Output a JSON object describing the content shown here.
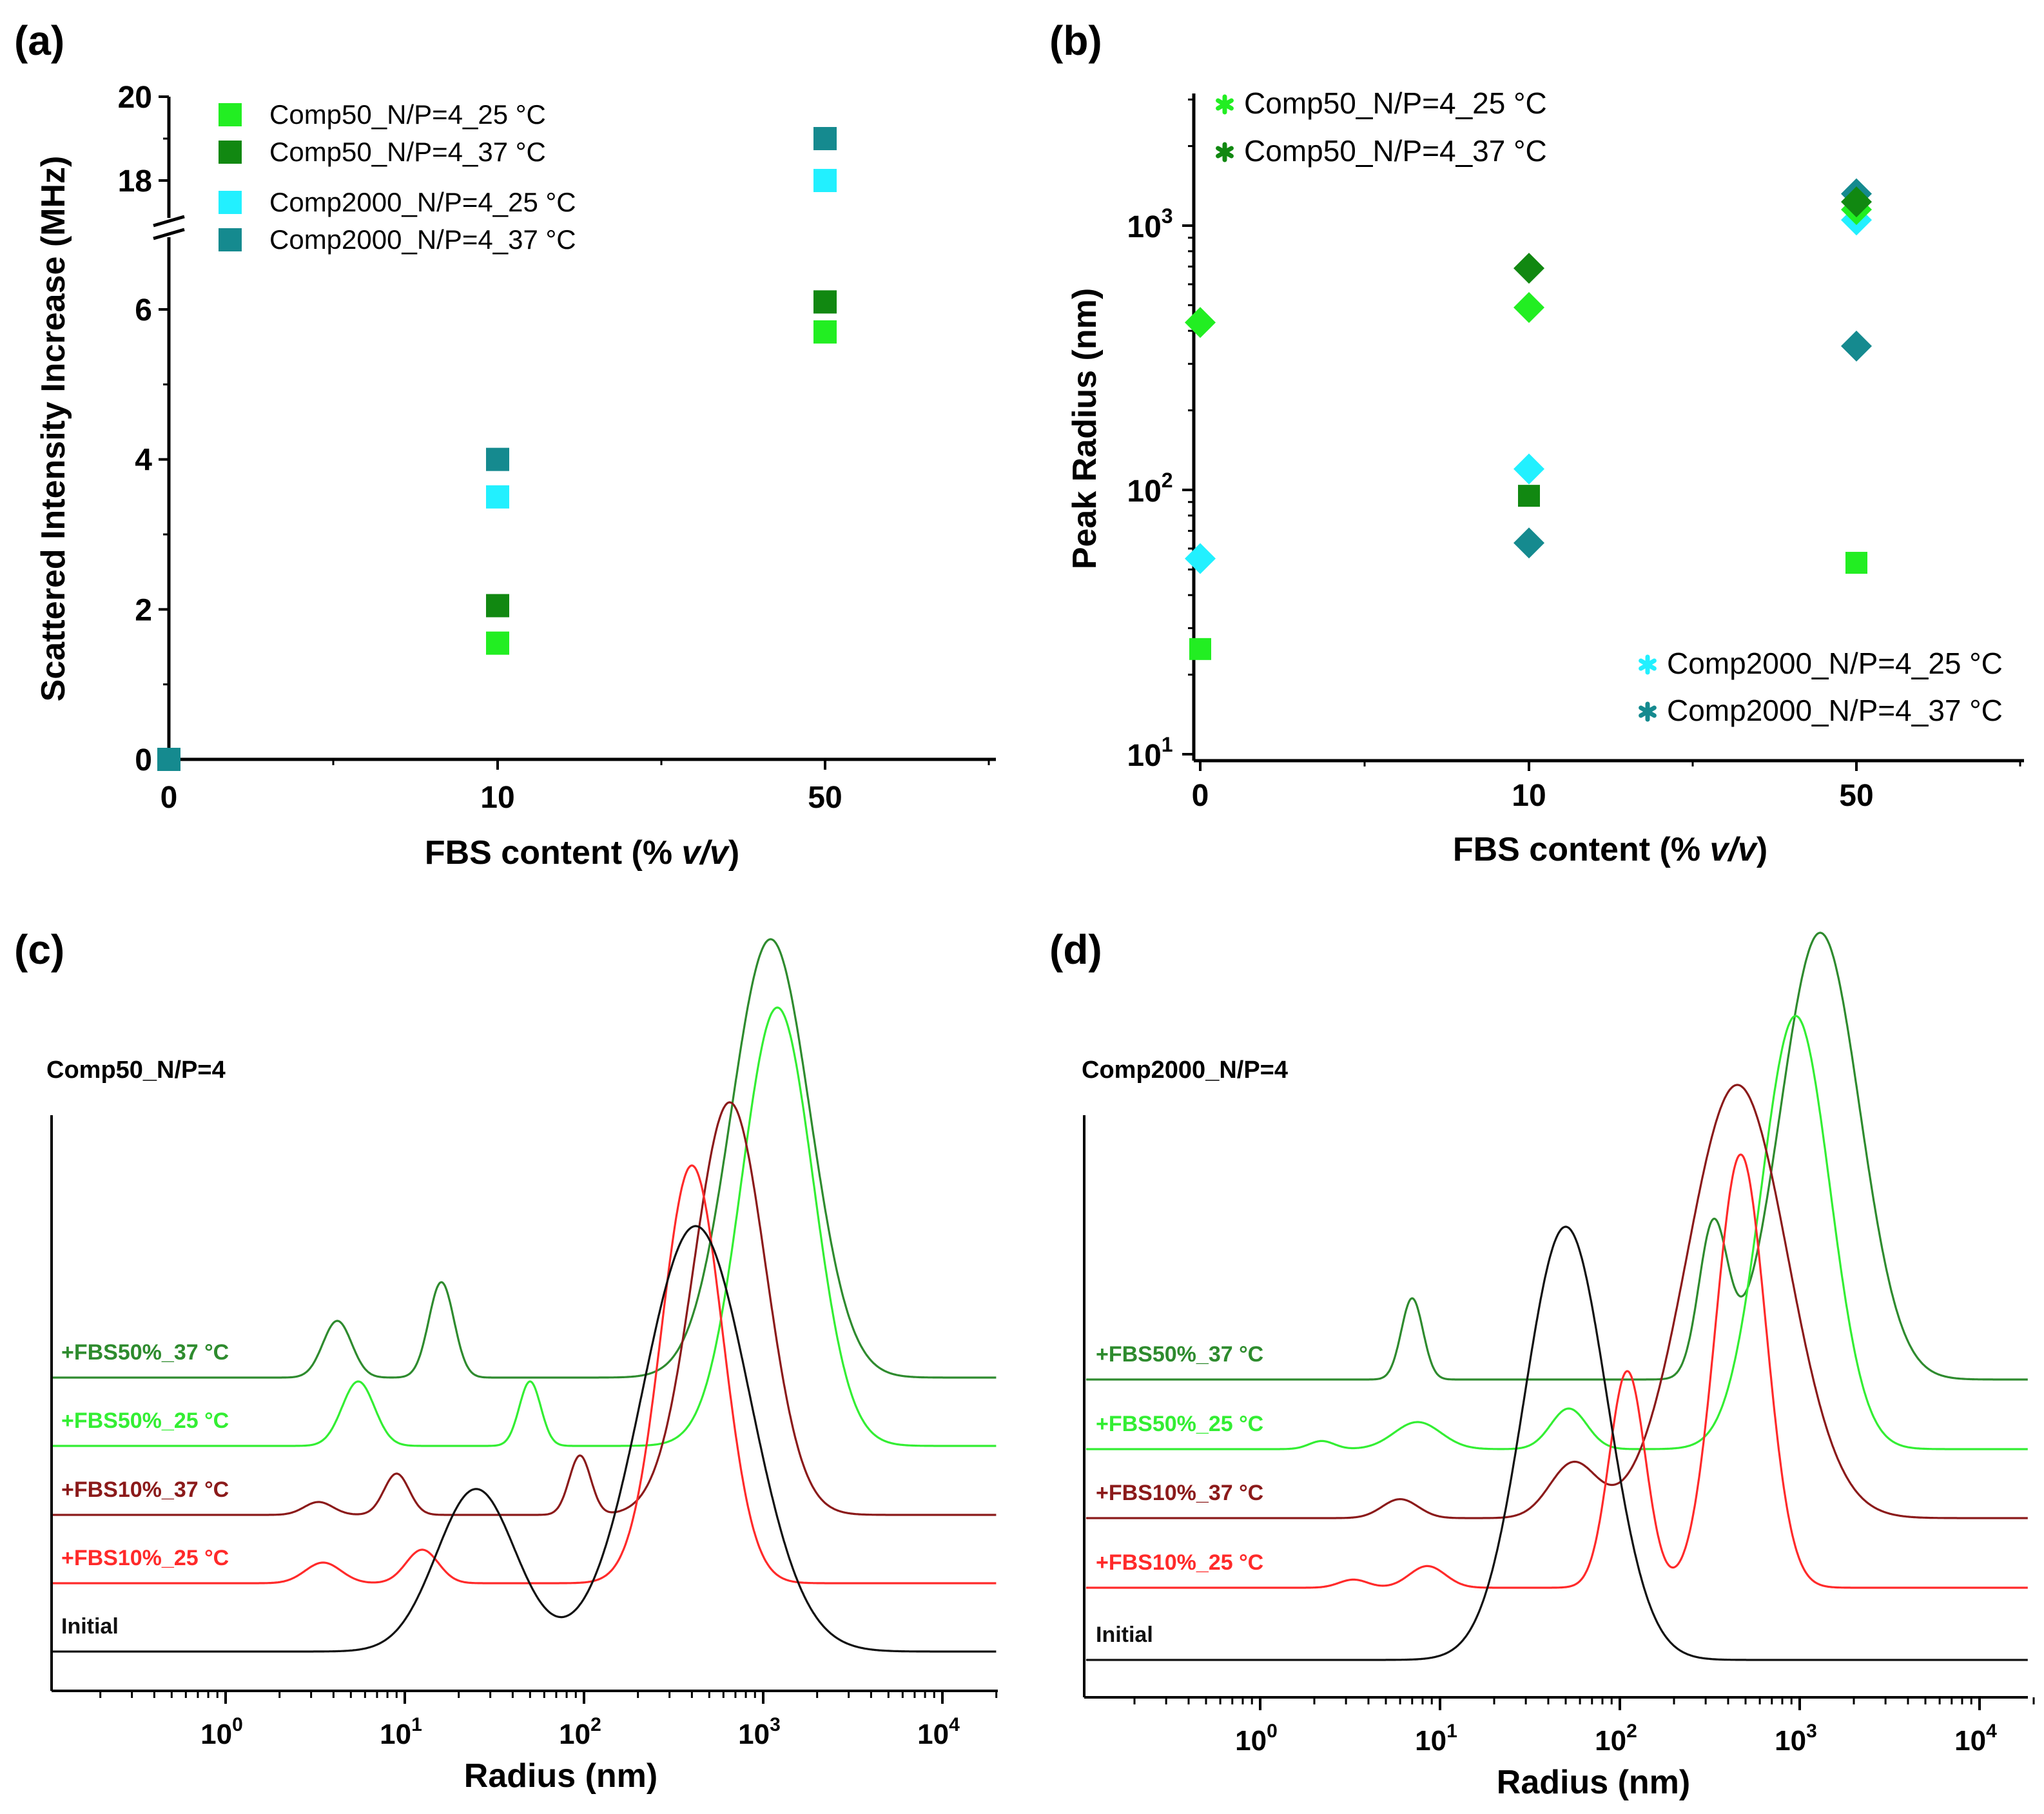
{
  "colors": {
    "comp50_25": "#22ee22",
    "comp50_37": "#118811",
    "comp2000_25": "#22f0ff",
    "comp2000_37": "#158a8f",
    "fbs50_37": "#2e8b2e",
    "fbs50_25": "#33ee33",
    "fbs10_37": "#8b1a1a",
    "fbs10_25": "#ff2a2a",
    "initial": "#111111"
  },
  "chart_data": [
    {
      "id": "a",
      "panel_label": "(a)",
      "type": "scatter",
      "xlabel_prefix": "FBS content (% ",
      "xlabel_italic": "v/v",
      "xlabel_suffix": ")",
      "ylabel": "Scattered Intensity Increase (MHz)",
      "categories": [
        "0",
        "10",
        "50"
      ],
      "y_ticks_lower": [
        "0",
        "2",
        "4",
        "6"
      ],
      "y_ticks_upper": [
        "18",
        "20"
      ],
      "ylim_lower": [
        0,
        6.8
      ],
      "ylim_upper": [
        16.8,
        20
      ],
      "axis_break": true,
      "series": [
        {
          "name": "Comp50_N/P=4_25 °C",
          "color_key": "comp50_25",
          "values": [
            0,
            1.55,
            5.7
          ]
        },
        {
          "name": "Comp50_N/P=4_37 °C",
          "color_key": "comp50_37",
          "values": [
            0,
            2.05,
            6.1
          ]
        },
        {
          "name": "Comp2000_N/P=4_25 °C",
          "color_key": "comp2000_25",
          "values": [
            0,
            3.5,
            18.0
          ]
        },
        {
          "name": "Comp2000_N/P=4_37 °C",
          "color_key": "comp2000_37",
          "values": [
            0,
            4.0,
            19.0
          ]
        }
      ],
      "legend_position": "top-left"
    },
    {
      "id": "b",
      "panel_label": "(b)",
      "type": "scatter",
      "yscale": "log",
      "xlabel_prefix": "FBS content (% ",
      "xlabel_italic": "v/v",
      "xlabel_suffix": ")",
      "ylabel": "Peak Radius (nm)",
      "categories": [
        "0",
        "10",
        "50"
      ],
      "y_tick_bases": [
        "10",
        "10",
        "10"
      ],
      "y_tick_exps": [
        "1",
        "2",
        "3"
      ],
      "ylim": [
        10,
        3500
      ],
      "points": [
        {
          "series": "Comp50_N/P=4_25 °C",
          "color_key": "comp50_25",
          "category": "0",
          "y": 25,
          "marker": "square"
        },
        {
          "series": "Comp50_N/P=4_25 °C",
          "color_key": "comp50_25",
          "category": "0",
          "y": 430,
          "marker": "diamond"
        },
        {
          "series": "Comp2000_N/P=4_25 °C",
          "color_key": "comp2000_25",
          "category": "0",
          "y": 55,
          "marker": "diamond"
        },
        {
          "series": "Comp50_N/P=4_37 °C",
          "color_key": "comp50_37",
          "category": "10",
          "y": 690,
          "marker": "diamond"
        },
        {
          "series": "Comp50_N/P=4_25 °C",
          "color_key": "comp50_25",
          "category": "10",
          "y": 490,
          "marker": "diamond"
        },
        {
          "series": "Comp2000_N/P=4_25 °C",
          "color_key": "comp2000_25",
          "category": "10",
          "y": 120,
          "marker": "diamond"
        },
        {
          "series": "Comp50_N/P=4_37 °C",
          "color_key": "comp50_37",
          "category": "10",
          "y": 95,
          "marker": "square"
        },
        {
          "series": "Comp2000_N/P=4_37 °C",
          "color_key": "comp2000_37",
          "category": "10",
          "y": 63,
          "marker": "diamond"
        },
        {
          "series": "Comp2000_N/P=4_37 °C",
          "color_key": "comp2000_37",
          "category": "50",
          "y": 1320,
          "marker": "diamond"
        },
        {
          "series": "Comp2000_N/P=4_25 °C",
          "color_key": "comp2000_25",
          "category": "50",
          "y": 1050,
          "marker": "diamond"
        },
        {
          "series": "Comp50_N/P=4_25 °C",
          "color_key": "comp50_25",
          "category": "50",
          "y": 1150,
          "marker": "diamond"
        },
        {
          "series": "Comp50_N/P=4_37 °C",
          "color_key": "comp50_37",
          "category": "50",
          "y": 1230,
          "marker": "diamond"
        },
        {
          "series": "Comp2000_N/P=4_37 °C",
          "color_key": "comp2000_37",
          "category": "50",
          "y": 350,
          "marker": "diamond"
        },
        {
          "series": "Comp50_N/P=4_25 °C",
          "color_key": "comp50_25",
          "category": "50",
          "y": 53,
          "marker": "square"
        }
      ],
      "legend": [
        {
          "name": "Comp50_N/P=4_25 °C",
          "color_key": "comp50_25",
          "position": "top-left"
        },
        {
          "name": "Comp50_N/P=4_37 °C",
          "color_key": "comp50_37",
          "position": "top-left"
        },
        {
          "name": "Comp2000_N/P=4_25 °C",
          "color_key": "comp2000_25",
          "position": "bottom-right"
        },
        {
          "name": "Comp2000_N/P=4_37 °C",
          "color_key": "comp2000_37",
          "position": "bottom-right"
        }
      ]
    },
    {
      "id": "c",
      "panel_label": "(c)",
      "type": "line",
      "xscale": "log",
      "subtitle": "Comp50_N/P=4",
      "xlabel": "Radius (nm)",
      "x_tick_bases": [
        "10",
        "10",
        "10",
        "10",
        "10"
      ],
      "x_tick_exps": [
        "0",
        "1",
        "2",
        "3",
        "4"
      ],
      "xlim": [
        0.1,
        20000
      ],
      "series": [
        {
          "name": "+FBS50%_37 °C",
          "color_key": "fbs50_37",
          "peaks": [
            {
              "center": 4.2,
              "width": 0.08,
              "height": 0.22
            },
            {
              "center": 16,
              "width": 0.07,
              "height": 0.37
            },
            {
              "center": 1100,
              "width": 0.22,
              "height": 1.7
            }
          ]
        },
        {
          "name": "+FBS50%_25 °C",
          "color_key": "fbs50_25",
          "peaks": [
            {
              "center": 5.5,
              "width": 0.09,
              "height": 0.25
            },
            {
              "center": 50,
              "width": 0.06,
              "height": 0.25
            },
            {
              "center": 1200,
              "width": 0.2,
              "height": 1.7
            }
          ]
        },
        {
          "name": "+FBS10%_37 °C",
          "color_key": "fbs10_37",
          "peaks": [
            {
              "center": 3.3,
              "width": 0.08,
              "height": 0.05
            },
            {
              "center": 9,
              "width": 0.07,
              "height": 0.16
            },
            {
              "center": 95,
              "width": 0.06,
              "height": 0.23
            },
            {
              "center": 650,
              "width": 0.2,
              "height": 1.6
            }
          ]
        },
        {
          "name": "+FBS10%_25 °C",
          "color_key": "fbs10_25",
          "peaks": [
            {
              "center": 3.5,
              "width": 0.1,
              "height": 0.08
            },
            {
              "center": 12.5,
              "width": 0.09,
              "height": 0.13
            },
            {
              "center": 400,
              "width": 0.17,
              "height": 1.62
            }
          ]
        },
        {
          "name": "Initial",
          "color_key": "initial",
          "peaks": [
            {
              "center": 25,
              "width": 0.22,
              "height": 0.63
            },
            {
              "center": 420,
              "width": 0.3,
              "height": 1.65
            }
          ]
        }
      ]
    },
    {
      "id": "d",
      "panel_label": "(d)",
      "type": "line",
      "xscale": "log",
      "subtitle": "Comp2000_N/P=4",
      "xlabel": "Radius (nm)",
      "x_tick_bases": [
        "10",
        "10",
        "10",
        "10",
        "10"
      ],
      "x_tick_exps": [
        "0",
        "1",
        "2",
        "3",
        "4"
      ],
      "xlim": [
        0.1,
        20000
      ],
      "series": [
        {
          "name": "+FBS50%_37 °C",
          "color_key": "fbs50_37",
          "peaks": [
            {
              "center": 7,
              "width": 0.06,
              "height": 0.3
            },
            {
              "center": 330,
              "width": 0.08,
              "height": 0.55
            },
            {
              "center": 1300,
              "width": 0.22,
              "height": 1.65
            }
          ]
        },
        {
          "name": "+FBS50%_25 °C",
          "color_key": "fbs50_25",
          "peaks": [
            {
              "center": 2.2,
              "width": 0.07,
              "height": 0.03
            },
            {
              "center": 7.5,
              "width": 0.13,
              "height": 0.1
            },
            {
              "center": 52,
              "width": 0.1,
              "height": 0.15
            },
            {
              "center": 950,
              "width": 0.19,
              "height": 1.6
            }
          ]
        },
        {
          "name": "+FBS10%_37 °C",
          "color_key": "fbs10_37",
          "peaks": [
            {
              "center": 6,
              "width": 0.1,
              "height": 0.07
            },
            {
              "center": 55,
              "width": 0.13,
              "height": 0.2
            },
            {
              "center": 450,
              "width": 0.28,
              "height": 1.6
            }
          ]
        },
        {
          "name": "+FBS10%_25 °C",
          "color_key": "fbs10_25",
          "peaks": [
            {
              "center": 3.3,
              "width": 0.08,
              "height": 0.03
            },
            {
              "center": 8.5,
              "width": 0.1,
              "height": 0.08
            },
            {
              "center": 110,
              "width": 0.1,
              "height": 0.8
            },
            {
              "center": 470,
              "width": 0.14,
              "height": 1.6
            }
          ]
        },
        {
          "name": "Initial",
          "color_key": "initial",
          "peaks": [
            {
              "center": 50,
              "width": 0.23,
              "height": 1.6
            }
          ]
        }
      ]
    }
  ]
}
